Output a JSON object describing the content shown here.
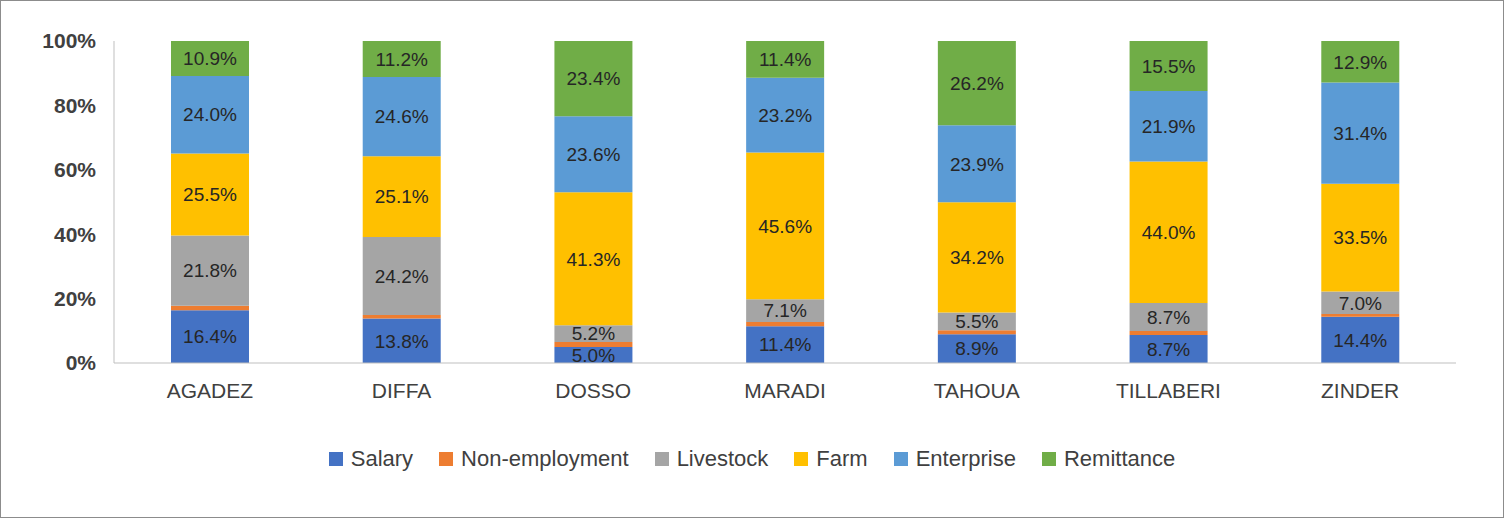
{
  "chart_data": {
    "type": "bar",
    "stacked": true,
    "data_labels": true,
    "grid": false,
    "categories": [
      "AGADEZ",
      "DIFFA",
      "DOSSO",
      "MARADI",
      "TAHOUA",
      "TILLABERI",
      "ZINDER"
    ],
    "ylim": [
      0,
      100
    ],
    "yticks": [
      {
        "value": 0,
        "label": "0%"
      },
      {
        "value": 20,
        "label": "20%"
      },
      {
        "value": 40,
        "label": "40%"
      },
      {
        "value": 60,
        "label": "60%"
      },
      {
        "value": 80,
        "label": "80%"
      },
      {
        "value": 100,
        "label": "100%"
      }
    ],
    "legend": "bottom",
    "series": [
      {
        "name": "Salary",
        "color": "#4472c4",
        "values": [
          16.4,
          13.8,
          5.0,
          11.4,
          8.9,
          8.7,
          14.4
        ],
        "value_labels": [
          "16.4%",
          "13.8%",
          "5.0%",
          "11.4%",
          "8.9%",
          "8.7%",
          "14.4%"
        ]
      },
      {
        "name": "Non-employment",
        "color": "#ed7d31",
        "data_labels": false,
        "values": [
          1.4,
          1.1,
          1.5,
          1.3,
          1.3,
          1.2,
          0.8
        ]
      },
      {
        "name": "Livestock",
        "color": "#a5a5a5",
        "values": [
          21.8,
          24.2,
          5.2,
          7.1,
          5.5,
          8.7,
          7.0
        ],
        "value_labels": [
          "21.8%",
          "24.2%",
          "5.2%",
          "7.1%",
          "5.5%",
          "8.7%",
          "7.0%"
        ]
      },
      {
        "name": "Farm",
        "color": "#ffc000",
        "values": [
          25.5,
          25.1,
          41.3,
          45.6,
          34.2,
          44.0,
          33.5
        ],
        "value_labels": [
          "25.5%",
          "25.1%",
          "41.3%",
          "45.6%",
          "34.2%",
          "44.0%",
          "33.5%"
        ]
      },
      {
        "name": "Enterprise",
        "color": "#5b9bd5",
        "values": [
          24.0,
          24.6,
          23.6,
          23.2,
          23.9,
          21.9,
          31.4
        ],
        "value_labels": [
          "24.0%",
          "24.6%",
          "23.6%",
          "23.2%",
          "23.9%",
          "21.9%",
          "31.4%"
        ]
      },
      {
        "name": "Remittance",
        "color": "#70ad47",
        "values": [
          10.9,
          11.2,
          23.4,
          11.4,
          26.2,
          15.5,
          12.9
        ],
        "value_labels": [
          "10.9%",
          "11.2%",
          "23.4%",
          "11.4%",
          "26.2%",
          "15.5%",
          "12.9%"
        ]
      }
    ]
  }
}
